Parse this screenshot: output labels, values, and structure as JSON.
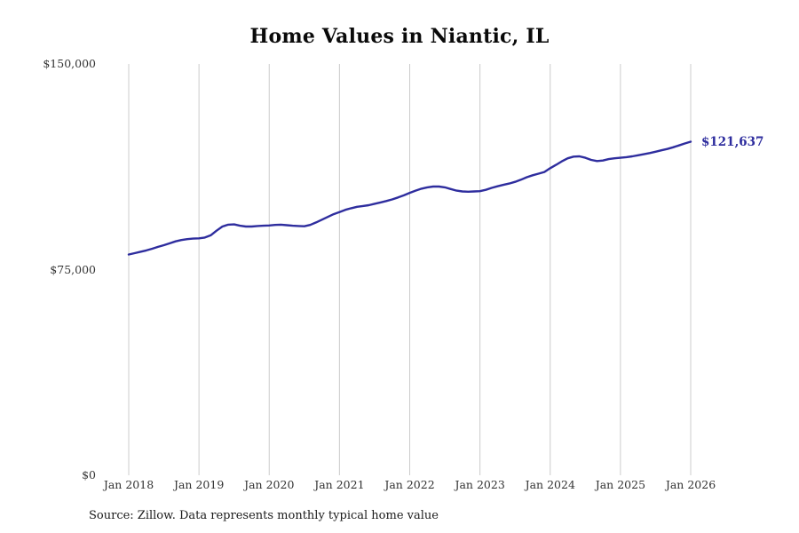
{
  "title": "Home Values in Niantic, IL",
  "source_note": "Source: Zillow. Data represents monthly typical home value",
  "end_value_label": "$121,637",
  "colors": {
    "line": "#2e2d9e",
    "grid": "#cccccc",
    "title": "#0a0a0a",
    "tick_text": "#333333"
  },
  "chart_data": {
    "type": "line",
    "title": "Home Values in Niantic, IL",
    "xlabel": "",
    "ylabel": "",
    "ylim": [
      0,
      150000
    ],
    "grid": "vertical-only",
    "legend": "none",
    "y_ticks": [
      {
        "label": "$0",
        "value": 0
      },
      {
        "label": "$75,000",
        "value": 75000
      },
      {
        "label": "$150,000",
        "value": 150000
      }
    ],
    "x_tick_labels": [
      "Jan 2018",
      "Jan 2019",
      "Jan 2020",
      "Jan 2021",
      "Jan 2022",
      "Jan 2023",
      "Jan 2024",
      "Jan 2025",
      "Jan 2026"
    ],
    "end_label": "$121,637",
    "series": [
      {
        "name": "Monthly typical home value",
        "x_start": "Jan 2018",
        "x_end": "Jan 2026",
        "interval": "monthly",
        "values": [
          80500,
          81000,
          81500,
          82000,
          82600,
          83300,
          83900,
          84600,
          85300,
          85800,
          86100,
          86300,
          86400,
          86700,
          87500,
          89200,
          90700,
          91400,
          91500,
          91000,
          90700,
          90700,
          90900,
          91000,
          91100,
          91300,
          91400,
          91200,
          91000,
          90900,
          90800,
          91300,
          92200,
          93200,
          94200,
          95200,
          96000,
          96800,
          97400,
          97900,
          98200,
          98500,
          99000,
          99500,
          100000,
          100600,
          101300,
          102100,
          103000,
          103800,
          104500,
          105000,
          105300,
          105300,
          105000,
          104400,
          103800,
          103500,
          103400,
          103500,
          103600,
          104100,
          104800,
          105400,
          105900,
          106400,
          107000,
          107800,
          108700,
          109400,
          110000,
          110600,
          112000,
          113200,
          114500,
          115600,
          116200,
          116300,
          115800,
          115000,
          114600,
          114800,
          115300,
          115600,
          115800,
          116000,
          116300,
          116700,
          117100,
          117500,
          118000,
          118500,
          119000,
          119600,
          120300,
          121000,
          121637
        ]
      }
    ]
  }
}
